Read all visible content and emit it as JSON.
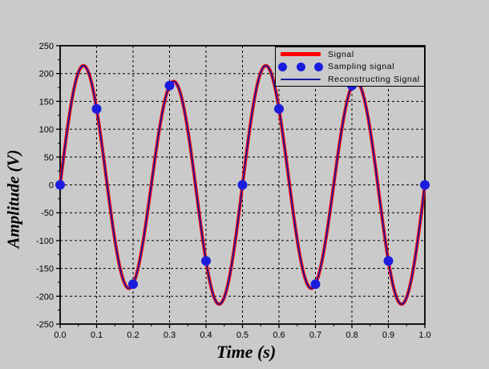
{
  "figure": {
    "background_color": "#CACACA",
    "xlabel": "Time (s)",
    "ylabel": "Amplitude (V)"
  },
  "legend": {
    "position": "top-right",
    "items": [
      {
        "label": "Signal",
        "swatch": "thick-line",
        "color": "#FF0000"
      },
      {
        "label": "Sampling signal",
        "swatch": "dots",
        "color": "#1C1CDE"
      },
      {
        "label": "Reconstructing Signal",
        "swatch": "thin-line",
        "color": "#1D1D9C"
      }
    ]
  },
  "chart_data": {
    "type": "line",
    "title": "",
    "xlabel": "Time (s)",
    "ylabel": "Amplitude (V)",
    "xlim": [
      0,
      1.0
    ],
    "ylim": [
      -250,
      250
    ],
    "x_tick_values": [
      0,
      0.1,
      0.2,
      0.3,
      0.4,
      0.5,
      0.6,
      0.7,
      0.8,
      0.9,
      1.0
    ],
    "x_tick_labels": [
      "0.0",
      "0.1",
      "0.2",
      "0.3",
      "0.4",
      "0.5",
      "0.6",
      "0.7",
      "0.8",
      "0.9",
      "1.0"
    ],
    "y_tick_values": [
      -250,
      -200,
      -150,
      -100,
      -50,
      0,
      50,
      100,
      150,
      200,
      250
    ],
    "y_tick_labels": [
      "-250",
      "-200",
      "-150",
      "-100",
      "-50",
      "0",
      "50",
      "100",
      "150",
      "200",
      "250"
    ],
    "x_minor_tick_step": 0.05,
    "y_minor_tick_step": 25,
    "grid": "dashed-black-on-majors",
    "grid_color": "#000000",
    "axes_color": "#000000",
    "series": [
      {
        "name": "Signal",
        "style": "line",
        "color": "#FF0000",
        "line_width": 4,
        "components": [
          {
            "amplitude_v": 200,
            "frequency_hz": 4,
            "phase_rad": 0
          },
          {
            "amplitude_v": 20,
            "frequency_hz": 2,
            "phase_rad": 0
          }
        ]
      },
      {
        "name": "Sampling signal",
        "style": "points",
        "color": "#1C1CDE",
        "marker_radius_px": 6,
        "sample_rate_hz": 10,
        "x": [
          0,
          0.1,
          0.2,
          0.3,
          0.4,
          0.5,
          0.6,
          0.7,
          0.8,
          0.9,
          1.0
        ],
        "y": [
          0,
          136.6,
          -178.4,
          178.4,
          -136.6,
          0,
          136.6,
          -178.4,
          178.4,
          -136.6,
          0
        ]
      },
      {
        "name": "Reconstructing Signal",
        "style": "line",
        "color": "#1D1D9C",
        "line_width": 1.8,
        "components": [
          {
            "amplitude_v": 200,
            "frequency_hz": 4,
            "phase_rad": 0
          },
          {
            "amplitude_v": 20,
            "frequency_hz": 2,
            "phase_rad": 0
          }
        ]
      }
    ],
    "legend_entries": [
      "Signal",
      "Sampling signal",
      "Reconstructing Signal"
    ]
  }
}
